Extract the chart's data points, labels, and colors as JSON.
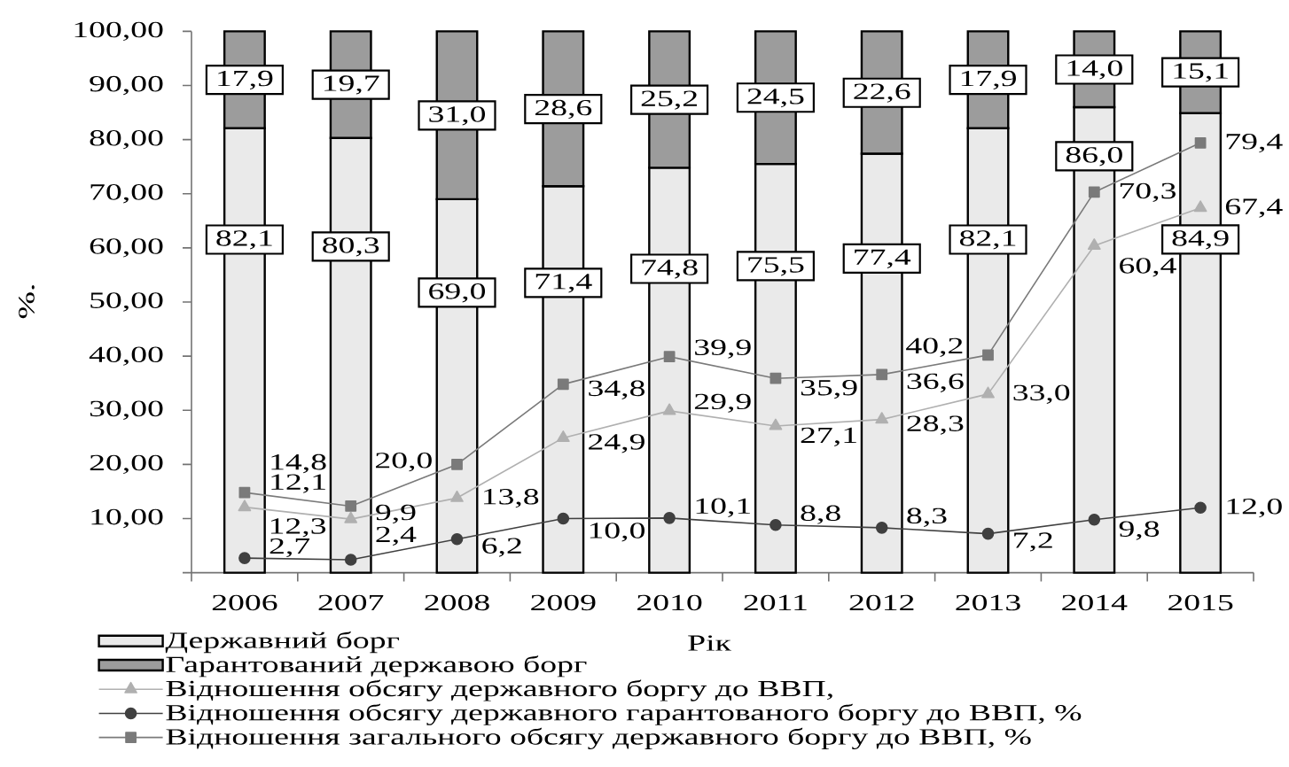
{
  "chart_data": {
    "type": "bar",
    "stacked": true,
    "xlabel": "Рік",
    "ylabel": "%.",
    "categories": [
      "2006",
      "2007",
      "2008",
      "2009",
      "2010",
      "2011",
      "2012",
      "2013",
      "2014",
      "2015"
    ],
    "series": [
      {
        "name": "Державний борг",
        "color": "#eaeaea",
        "values": [
          82.1,
          80.3,
          69.0,
          71.4,
          74.8,
          75.5,
          77.4,
          82.1,
          86.0,
          84.9
        ],
        "value_labels": [
          "82,1",
          "80,3",
          "69,0",
          "71,4",
          "74,8",
          "75,5",
          "77,4",
          "82,1",
          "86,0",
          "84,9"
        ]
      },
      {
        "name": "Гарантований державою борг",
        "color": "#9c9c9c",
        "values": [
          17.9,
          19.7,
          31.0,
          28.6,
          25.2,
          24.5,
          22.6,
          17.9,
          14.0,
          15.1
        ],
        "value_labels": [
          "17,9",
          "19,7",
          "31,0",
          "28,6",
          "25,2",
          "24,5",
          "22,6",
          "17,9",
          "14,0",
          "15,1"
        ]
      },
      {
        "name": "Відношення обсягу державного боргу до ВВП,",
        "type": "line",
        "color": "#b0b0b0",
        "marker": "triangle",
        "values": [
          12.1,
          9.9,
          13.8,
          24.9,
          29.9,
          27.1,
          28.3,
          33.0,
          60.4,
          67.4
        ],
        "value_labels": [
          "12,1",
          "9,9",
          "13,8",
          "24,9",
          "29,9",
          "27,1",
          "28,3",
          "33,0",
          "60,4",
          "67,4"
        ]
      },
      {
        "name": "Відношення обсягу державного гарантованого боргу до ВВП, %",
        "type": "line",
        "color": "#404040",
        "marker": "circle",
        "values": [
          2.7,
          2.4,
          6.2,
          10.0,
          10.1,
          8.8,
          8.3,
          7.2,
          9.8,
          12.0
        ],
        "value_labels": [
          "2,7",
          "2,4",
          "6,2",
          "10,0",
          "10,1",
          "8,8",
          "8,3",
          "7,2",
          "9,8",
          "12,0"
        ]
      },
      {
        "name": "Відношення загального обсягу державного боргу до ВВП, %",
        "type": "line",
        "color": "#7a7a7a",
        "marker": "square",
        "values": [
          14.8,
          12.3,
          20.0,
          34.8,
          39.9,
          35.9,
          36.6,
          40.2,
          70.3,
          79.4
        ],
        "value_labels": [
          "14,8",
          "12,3",
          "20,0",
          "34,8",
          "39,9",
          "35,9",
          "36,6",
          "40,2",
          "70,3",
          "79,4"
        ]
      }
    ],
    "ylim": [
      0,
      100
    ],
    "yticks": [
      {
        "value": 0,
        "label": null
      },
      {
        "value": 10,
        "label": "10,00"
      },
      {
        "value": 20,
        "label": "20,00"
      },
      {
        "value": 30,
        "label": "30,00"
      },
      {
        "value": 40,
        "label": "40,00"
      },
      {
        "value": 50,
        "label": "50,00"
      },
      {
        "value": 60,
        "label": "60,00"
      },
      {
        "value": 70,
        "label": "70,00"
      },
      {
        "value": 80,
        "label": "80,00"
      },
      {
        "value": 90,
        "label": "90,00"
      },
      {
        "value": 100,
        "label": "100,00"
      }
    ],
    "legend": "bottom left"
  }
}
